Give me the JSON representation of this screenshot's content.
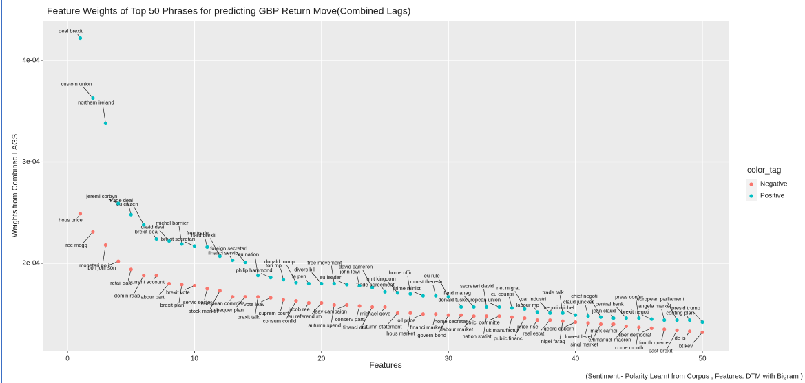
{
  "chart_data": {
    "type": "scatter",
    "title": "Feature Weights of Top 50 Phrases for predicting GBP Return Move(Combined Lags)",
    "x_label": "Features",
    "y_label": "Weights from Combined LAGS",
    "caption": "(Sentiment:- Polarity Learnt from Corpus , Features: DTM with Bigram )",
    "legend_title": "color_tag",
    "legend_position": "right",
    "grid": true,
    "xlim": [
      -1.9,
      52.06
    ],
    "ylim": [
      0.0001139,
      0.0004393
    ],
    "xticks": [
      0,
      10,
      20,
      30,
      40,
      50
    ],
    "yticks": [
      {
        "value": 0.0002,
        "label": "2e-04"
      },
      {
        "value": 0.0003,
        "label": "3e-04"
      },
      {
        "value": 0.0004,
        "label": "4e-04"
      }
    ],
    "x": [
      1,
      2,
      3,
      4,
      5,
      6,
      7,
      8,
      9,
      10,
      11,
      12,
      13,
      14,
      15,
      16,
      17,
      18,
      19,
      20,
      21,
      22,
      23,
      24,
      25,
      26,
      27,
      28,
      29,
      30,
      31,
      32,
      33,
      34,
      35,
      36,
      37,
      38,
      39,
      40,
      41,
      42,
      43,
      44,
      45,
      46,
      47,
      48,
      49,
      50
    ],
    "series": [
      {
        "name": "Negative",
        "color": "#f8766d",
        "values": [
          0.000249,
          0.000231,
          0.000218,
          0.000202,
          0.000194,
          0.000188,
          0.000188,
          0.00018,
          0.000179,
          0.000178,
          0.000175,
          0.000173,
          0.000167,
          0.000167,
          0.000167,
          0.000166,
          0.000164,
          0.000163,
          0.000161,
          0.000161,
          0.000159,
          0.000159,
          0.000158,
          0.000157,
          0.000157,
          0.000151,
          0.000151,
          0.00015,
          0.00015,
          0.000149,
          0.000149,
          0.000148,
          0.000148,
          0.000148,
          0.000147,
          0.000146,
          0.000144,
          0.000144,
          0.000143,
          0.000142,
          0.000141,
          0.00014,
          0.00014,
          0.000138,
          0.000137,
          0.000136,
          0.000135,
          0.000134,
          0.000133,
          0.000132
        ],
        "labels": [
          "hous price",
          "ree mogg",
          "monetari polici",
          "bori johnson",
          "retail sale",
          "domin raab",
          "current account",
          "labour parti",
          "brexit plan",
          "brexit vote",
          "servic sector",
          "stock market",
          "european commiss",
          "chequer plan",
          "brexit talk",
          "vote leav",
          "suprem court",
          "consum confid",
          "jacob ree",
          "eu referendum",
          "autumn spend",
          "leav campaign",
          "conserv parti",
          "financi crisi",
          "michael gove",
          "autumn statement",
          "hous market",
          "oil price",
          "financi market",
          "govern bond",
          "home secretari",
          "labour market",
          "nation statist",
          "polici committe",
          "uk manufactur",
          "public financ",
          "price rise",
          "real estat",
          "nigel farag",
          "georg osborn",
          "lowest level",
          "singl market",
          "mark carnei",
          "emmanuel macron",
          "come month",
          "liber democrat",
          "fourth quarter",
          "past brexit",
          "de is",
          "bt kev"
        ]
      },
      {
        "name": "Positive",
        "color": "#00bfc4",
        "values": [
          0.000422,
          0.000363,
          0.000338,
          0.000259,
          0.000248,
          0.000238,
          0.000224,
          0.000222,
          0.000219,
          0.000217,
          0.000216,
          0.000207,
          0.000203,
          0.000201,
          0.000188,
          0.000186,
          0.000184,
          0.000181,
          0.00018,
          0.00018,
          0.00018,
          0.000179,
          0.000178,
          0.000176,
          0.000172,
          0.000171,
          0.00017,
          0.000168,
          0.000168,
          0.000167,
          0.000157,
          0.000157,
          0.000157,
          0.000157,
          0.000156,
          0.000155,
          0.000152,
          0.000151,
          0.000151,
          0.000149,
          0.000148,
          0.000147,
          0.000146,
          0.000146,
          0.000146,
          0.000145,
          0.000144,
          0.000144,
          0.000144,
          0.000142
        ],
        "labels": [
          "deal brexit",
          "custom union",
          "northern ireland",
          "jeremi corbyn",
          "trade deal",
          "eu citizen",
          "brexit deal",
          "david davi",
          "michel barnier",
          "brexit secretari",
          "free trade",
          "hard brexit",
          "financi servic",
          "foreign secretari",
          "eu nation",
          "philip hammond",
          "tori mp",
          "donald trump",
          "le pen",
          "divorc bill",
          "free movement",
          "eu leader",
          "john lewi",
          "david cameron",
          "trade agreement",
          "unit kingdom",
          "home offic",
          "prime minist",
          "minist theresa",
          "eu rule",
          "donald tusk",
          "fund manag",
          "secretari david",
          "european union",
          "eu countri",
          "net migrat",
          "labour mp",
          "car industri",
          "trade talk",
          "negoti michel",
          "claud juncker",
          "chief negoti",
          "jean claud",
          "central bank",
          "press confer",
          "brexit negoti",
          "angela merkel",
          "european parliament",
          "conting plan",
          "presid trump"
        ]
      }
    ]
  }
}
